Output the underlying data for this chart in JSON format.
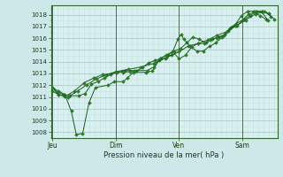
{
  "xlabel": "Pression niveau de la mer( hPa )",
  "bg_color": "#cce8e8",
  "plot_bg_color": "#d8f0f0",
  "grid_major_color": "#b0c8c8",
  "grid_minor_color": "#c8e0e0",
  "line_color": "#1a5c1a",
  "marker_color": "#2a7a2a",
  "ylim": [
    1007.5,
    1018.8
  ],
  "yticks": [
    1008,
    1009,
    1010,
    1011,
    1012,
    1013,
    1014,
    1015,
    1016,
    1017,
    1018
  ],
  "xtick_labels": [
    "Jeu",
    "Dim",
    "Ven",
    "Sam"
  ],
  "xtick_positions": [
    0.0,
    1.0,
    2.0,
    3.0
  ],
  "xlim": [
    -0.02,
    3.55
  ],
  "series": [
    [
      0.0,
      1011.8,
      0.08,
      1011.4,
      0.18,
      1011.2,
      0.28,
      1011.1,
      0.42,
      1011.1,
      0.52,
      1011.3,
      0.62,
      1012.1,
      0.72,
      1012.3,
      0.82,
      1012.6,
      0.92,
      1012.9,
      1.02,
      1013.1,
      1.12,
      1013.1,
      1.22,
      1013.15,
      1.32,
      1013.2,
      1.42,
      1013.5,
      1.52,
      1013.9,
      1.62,
      1014.1,
      1.72,
      1014.3,
      1.82,
      1014.6,
      1.92,
      1014.9,
      2.02,
      1015.1,
      2.12,
      1015.6,
      2.22,
      1016.1,
      2.32,
      1015.9,
      2.42,
      1015.6,
      2.52,
      1015.9,
      2.62,
      1016.1,
      2.72,
      1016.3,
      2.82,
      1016.9,
      2.92,
      1017.1,
      3.02,
      1017.6,
      3.12,
      1017.9,
      3.22,
      1018.3,
      3.32,
      1018.3,
      3.42,
      1018.1,
      3.5,
      1017.6
    ],
    [
      0.0,
      1011.8,
      0.1,
      1011.5,
      0.2,
      1011.2,
      0.3,
      1009.8,
      0.38,
      1007.8,
      0.48,
      1007.9,
      0.58,
      1010.5,
      0.68,
      1011.8,
      0.88,
      1012.0,
      0.98,
      1012.3,
      1.12,
      1012.3,
      1.18,
      1012.6,
      1.28,
      1013.1,
      1.48,
      1013.1,
      1.58,
      1013.2,
      1.68,
      1014.1,
      1.78,
      1014.3,
      1.88,
      1014.6,
      1.98,
      1015.9,
      2.03,
      1016.3,
      2.08,
      1015.9,
      2.18,
      1015.3,
      2.28,
      1014.9,
      2.38,
      1014.9,
      2.48,
      1015.3,
      2.58,
      1015.6,
      2.68,
      1016.1,
      2.78,
      1016.6,
      2.88,
      1017.1,
      2.98,
      1017.9,
      3.08,
      1018.3,
      3.18,
      1018.3,
      3.28,
      1017.9,
      3.38,
      1017.6
    ],
    [
      0.0,
      1011.5,
      0.1,
      1011.2,
      0.2,
      1011.05,
      0.35,
      1011.5,
      0.5,
      1012.2,
      0.65,
      1012.6,
      0.8,
      1012.9,
      1.0,
      1013.05,
      1.15,
      1013.25,
      1.3,
      1013.25,
      1.5,
      1013.25,
      1.6,
      1013.55,
      1.7,
      1014.25,
      1.8,
      1014.55,
      1.9,
      1014.85,
      2.0,
      1014.25,
      2.1,
      1014.55,
      2.2,
      1015.25,
      2.3,
      1015.55,
      2.4,
      1015.55,
      2.5,
      1015.85,
      2.6,
      1016.05,
      2.7,
      1016.25,
      2.8,
      1016.85,
      2.9,
      1017.25,
      3.0,
      1017.55,
      3.1,
      1018.05,
      3.2,
      1018.25,
      3.3,
      1018.25,
      3.4,
      1017.55
    ],
    [
      0.0,
      1011.8,
      0.1,
      1011.2,
      0.25,
      1011.0,
      0.4,
      1011.5,
      0.55,
      1012.05,
      0.7,
      1012.55,
      0.85,
      1012.85,
      1.0,
      1013.15,
      1.2,
      1013.35,
      1.4,
      1013.55,
      1.6,
      1013.85,
      1.8,
      1014.35,
      2.0,
      1014.85,
      2.15,
      1015.35,
      2.3,
      1015.55,
      2.45,
      1015.85,
      2.6,
      1016.25,
      2.75,
      1016.55,
      2.9,
      1017.05,
      3.05,
      1017.55,
      3.2,
      1018.05,
      3.35,
      1018.25,
      3.45,
      1017.85
    ]
  ]
}
